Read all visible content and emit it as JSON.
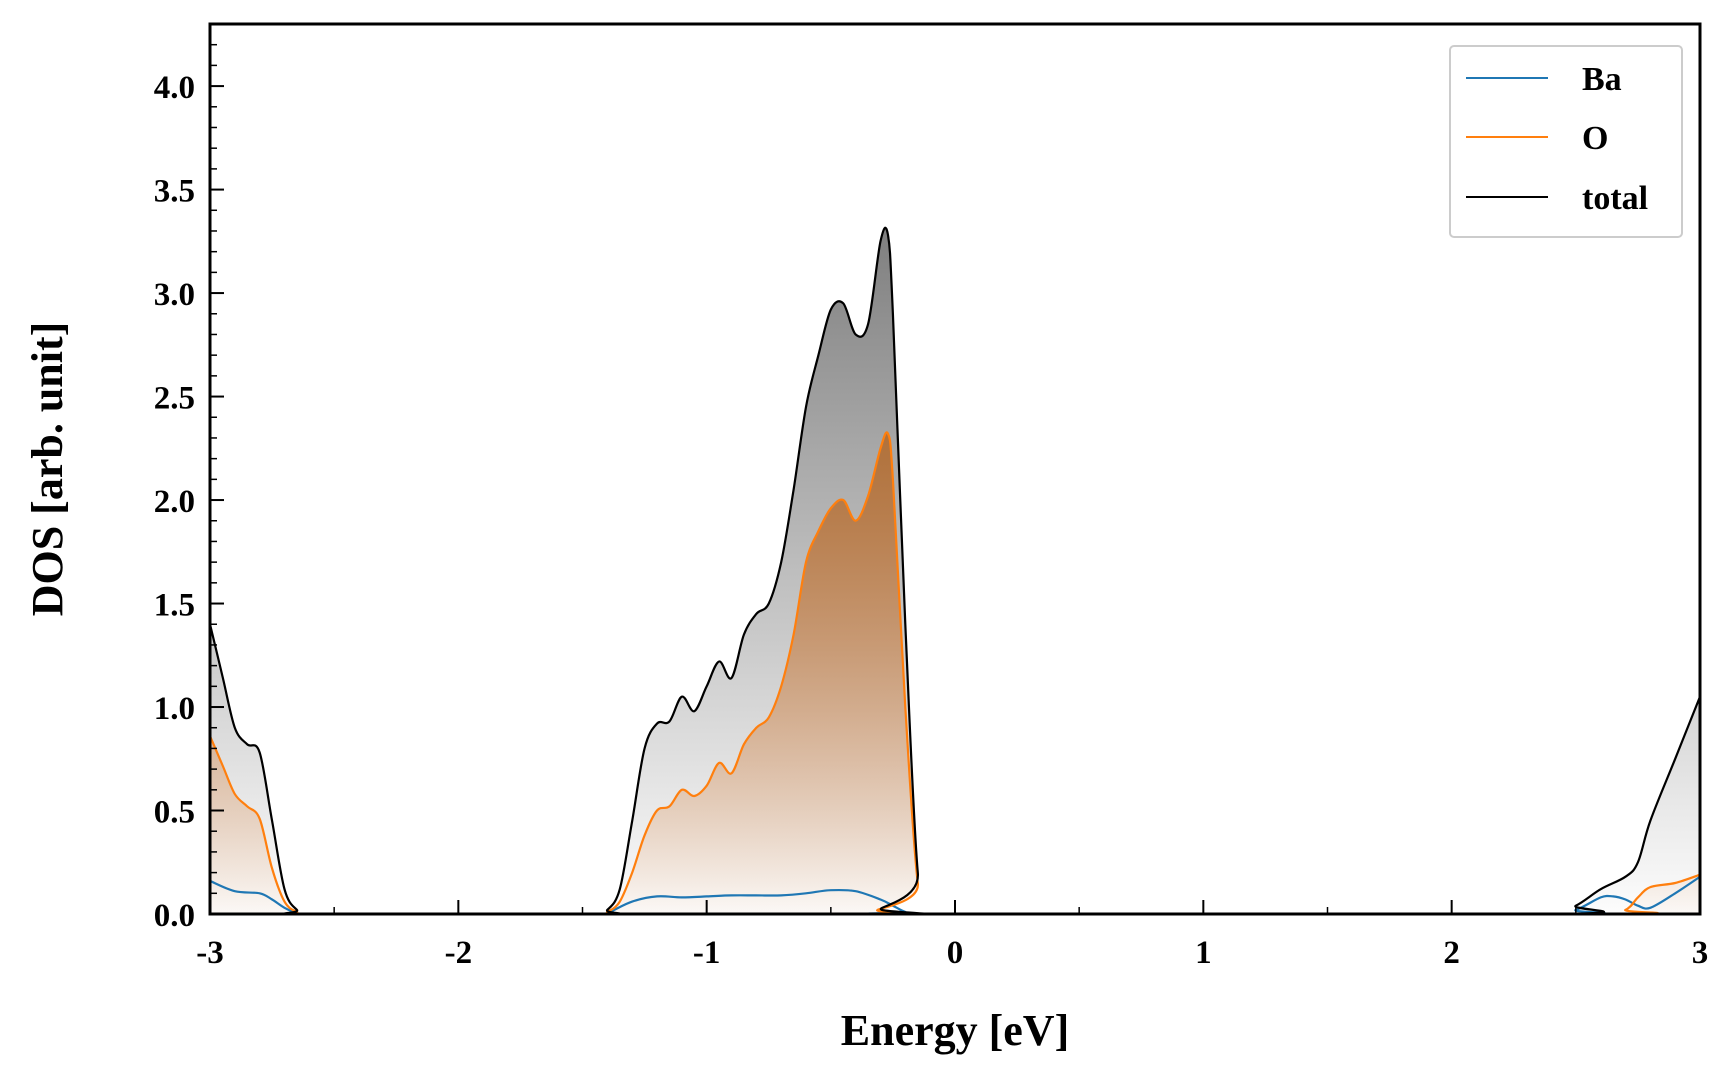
{
  "chart_data": {
    "type": "area",
    "title": "",
    "xlabel": "Energy [eV]",
    "ylabel": "DOS [arb. unit]",
    "xlim": [
      -3,
      3
    ],
    "ylim": [
      0,
      4.3
    ],
    "x_ticks": [
      -3,
      -2,
      -1,
      0,
      1,
      2,
      3
    ],
    "x_tick_labels": [
      "-3",
      "-2",
      "-1",
      "0",
      "1",
      "2",
      "3"
    ],
    "y_ticks": [
      0.0,
      0.5,
      1.0,
      1.5,
      2.0,
      2.5,
      3.0,
      3.5,
      4.0
    ],
    "y_tick_labels": [
      "0.0",
      "0.5",
      "1.0",
      "1.5",
      "2.0",
      "2.5",
      "3.0",
      "3.5",
      "4.0"
    ],
    "grid": false,
    "legend": {
      "position": "top-right",
      "entries": [
        "Ba",
        "O",
        "total"
      ]
    },
    "colors": {
      "Ba": "#1f77b4",
      "O": "#ff7f0e",
      "total": "#000000",
      "total_fill": "#7f7f7f",
      "O_fill": "#b0713b"
    },
    "series": [
      {
        "name": "Ba",
        "filled": false,
        "x": [
          -3.0,
          -2.9,
          -2.8,
          -2.75,
          -2.7,
          -2.65,
          -2.6,
          -1.45,
          -1.4,
          -1.3,
          -1.2,
          -1.1,
          -1.0,
          -0.9,
          -0.8,
          -0.7,
          -0.6,
          -0.5,
          -0.4,
          -0.3,
          -0.25,
          -0.2,
          -0.15,
          2.4,
          2.5,
          2.6,
          2.65,
          2.7,
          2.75,
          2.8,
          2.9,
          3.0
        ],
        "y": [
          0.16,
          0.11,
          0.1,
          0.07,
          0.03,
          0.005,
          0.0,
          0.0,
          0.005,
          0.06,
          0.085,
          0.08,
          0.085,
          0.09,
          0.09,
          0.09,
          0.1,
          0.115,
          0.11,
          0.07,
          0.04,
          0.01,
          0.0,
          0.0,
          0.02,
          0.08,
          0.085,
          0.07,
          0.04,
          0.03,
          0.1,
          0.18
        ]
      },
      {
        "name": "O",
        "filled": true,
        "x": [
          -3.0,
          -2.95,
          -2.9,
          -2.85,
          -2.8,
          -2.75,
          -2.7,
          -2.65,
          -2.6,
          -1.45,
          -1.4,
          -1.35,
          -1.3,
          -1.25,
          -1.2,
          -1.15,
          -1.1,
          -1.05,
          -1.0,
          -0.95,
          -0.9,
          -0.85,
          -0.8,
          -0.75,
          -0.7,
          -0.65,
          -0.6,
          -0.55,
          -0.5,
          -0.45,
          -0.4,
          -0.35,
          -0.3,
          -0.27,
          -0.25,
          -0.2,
          -0.15,
          -0.1,
          2.6,
          2.7,
          2.75,
          2.8,
          2.9,
          3.0
        ],
        "y": [
          0.86,
          0.72,
          0.58,
          0.52,
          0.46,
          0.22,
          0.06,
          0.01,
          0.0,
          0.0,
          0.01,
          0.06,
          0.2,
          0.38,
          0.5,
          0.52,
          0.6,
          0.57,
          0.62,
          0.73,
          0.68,
          0.82,
          0.9,
          0.95,
          1.1,
          1.35,
          1.7,
          1.85,
          1.96,
          2.0,
          1.9,
          2.02,
          2.25,
          2.32,
          2.1,
          1.0,
          0.15,
          0.0,
          0.0,
          0.02,
          0.08,
          0.13,
          0.15,
          0.19
        ]
      },
      {
        "name": "total",
        "filled": true,
        "x": [
          -3.0,
          -2.95,
          -2.9,
          -2.85,
          -2.8,
          -2.75,
          -2.7,
          -2.65,
          -2.6,
          -1.45,
          -1.4,
          -1.35,
          -1.3,
          -1.25,
          -1.2,
          -1.15,
          -1.1,
          -1.05,
          -1.0,
          -0.95,
          -0.9,
          -0.85,
          -0.8,
          -0.75,
          -0.7,
          -0.65,
          -0.6,
          -0.55,
          -0.5,
          -0.45,
          -0.4,
          -0.35,
          -0.3,
          -0.27,
          -0.25,
          -0.2,
          -0.15,
          -0.1,
          2.4,
          2.5,
          2.6,
          2.7,
          2.75,
          2.8,
          2.9,
          3.0
        ],
        "y": [
          1.4,
          1.15,
          0.9,
          0.82,
          0.78,
          0.45,
          0.12,
          0.02,
          0.0,
          0.0,
          0.02,
          0.12,
          0.45,
          0.8,
          0.92,
          0.93,
          1.05,
          0.98,
          1.1,
          1.22,
          1.14,
          1.35,
          1.45,
          1.5,
          1.7,
          2.05,
          2.45,
          2.7,
          2.92,
          2.95,
          2.8,
          2.85,
          3.25,
          3.28,
          2.9,
          1.4,
          0.2,
          0.0,
          0.0,
          0.04,
          0.12,
          0.18,
          0.25,
          0.45,
          0.75,
          1.05
        ]
      }
    ]
  }
}
